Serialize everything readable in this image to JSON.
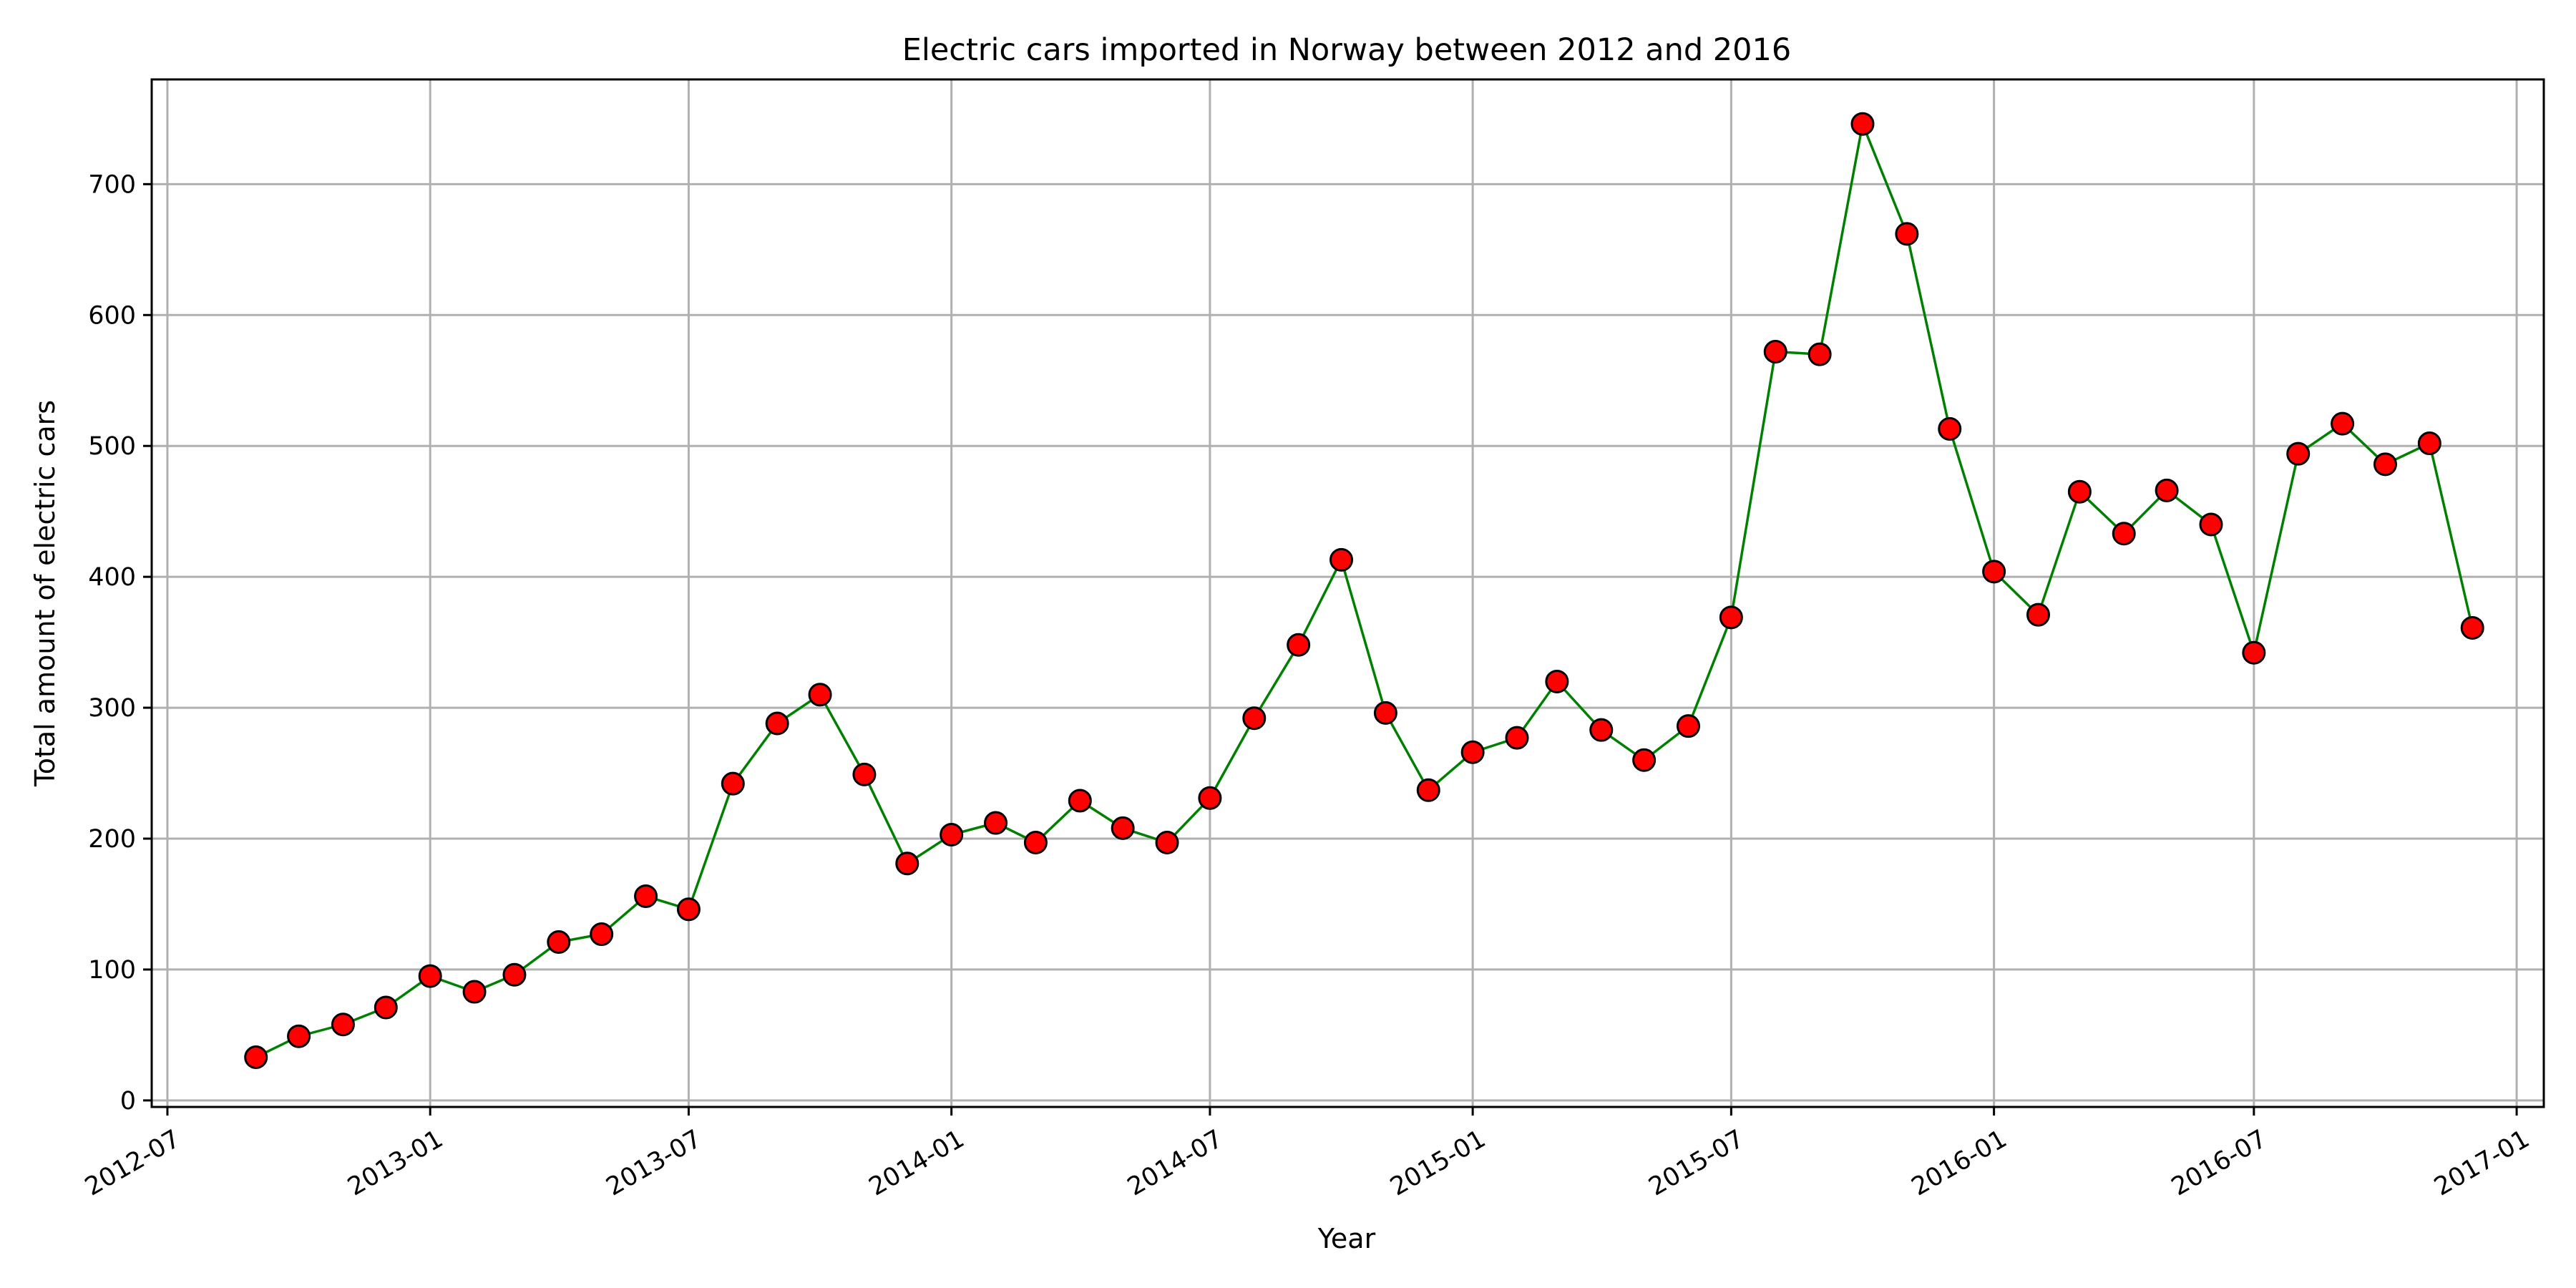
{
  "chart_data": {
    "type": "line",
    "title": "Electric cars imported in Norway between 2012 and 2016",
    "xlabel": "Year",
    "ylabel": "Total amount of electric cars",
    "grid": true,
    "ylim": [
      -5,
      780
    ],
    "xlim": [
      "2012-06-20",
      "2017-01-20"
    ],
    "x_ticks": [
      "2012-07",
      "2013-01",
      "2013-07",
      "2014-01",
      "2014-07",
      "2015-01",
      "2015-07",
      "2016-01",
      "2016-07",
      "2017-01"
    ],
    "y_ticks": [
      0,
      100,
      200,
      300,
      400,
      500,
      600,
      700
    ],
    "colors": {
      "line": "#008000",
      "marker_fill": "#ff0000",
      "marker_edge": "#000000",
      "grid": "#b0b0b0"
    },
    "series": [
      {
        "x": [
          "2012-09",
          "2012-10",
          "2012-11",
          "2012-12",
          "2013-01",
          "2013-02",
          "2013-03",
          "2013-04",
          "2013-05",
          "2013-06",
          "2013-07",
          "2013-08",
          "2013-09",
          "2013-10",
          "2013-11",
          "2013-12",
          "2014-01",
          "2014-02",
          "2014-03",
          "2014-04",
          "2014-05",
          "2014-06",
          "2014-07",
          "2014-08",
          "2014-09",
          "2014-10",
          "2014-11",
          "2014-12",
          "2015-01",
          "2015-02",
          "2015-03",
          "2015-04",
          "2015-05",
          "2015-06",
          "2015-07",
          "2015-08",
          "2015-09",
          "2015-10",
          "2015-11",
          "2015-12",
          "2016-01",
          "2016-02",
          "2016-03",
          "2016-04",
          "2016-05",
          "2016-06",
          "2016-07",
          "2016-08",
          "2016-09",
          "2016-10",
          "2016-11",
          "2016-12"
        ],
        "values": [
          33,
          49,
          58,
          71,
          95,
          83,
          96,
          121,
          127,
          156,
          146,
          242,
          288,
          310,
          249,
          181,
          203,
          212,
          197,
          229,
          208,
          197,
          231,
          292,
          348,
          413,
          296,
          237,
          266,
          277,
          320,
          283,
          260,
          286,
          369,
          572,
          570,
          746,
          662,
          513,
          404,
          371,
          465,
          433,
          466,
          440,
          342,
          494,
          517,
          486,
          502,
          361
        ]
      }
    ]
  }
}
